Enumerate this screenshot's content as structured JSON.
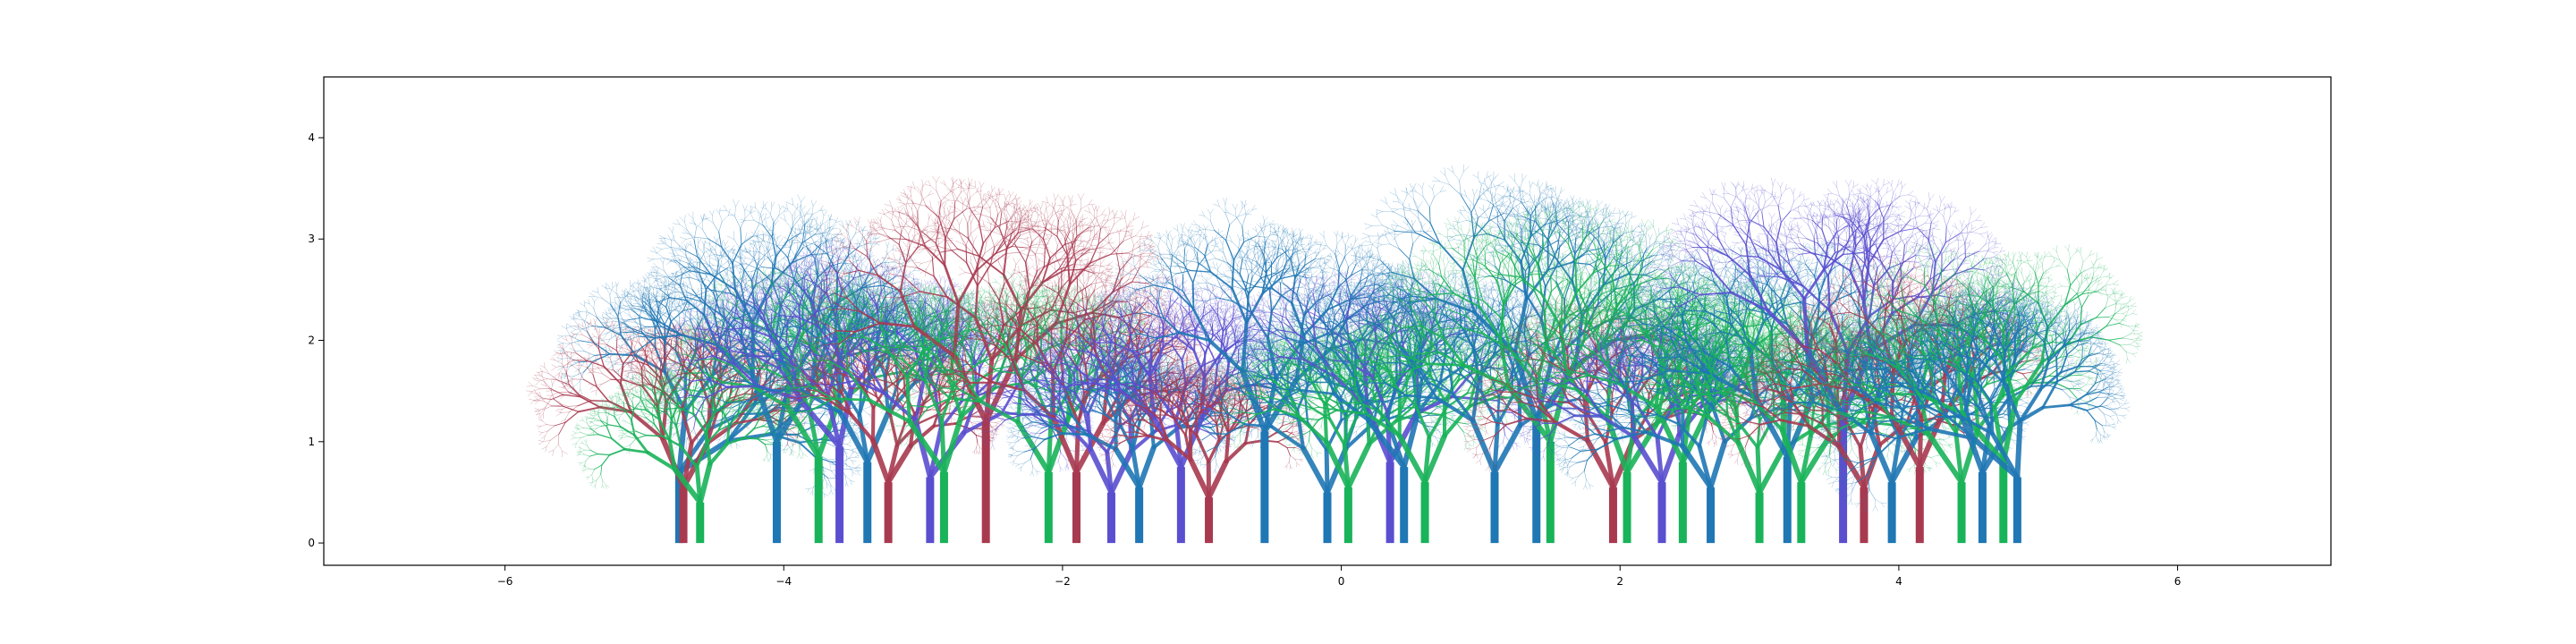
{
  "figure": {
    "plot_type": "fractal tree forest drawn on matplotlib axes",
    "background": "#ffffff",
    "x_axis": {
      "min": -7.3,
      "max": 7.1,
      "ticks": [
        -6,
        -4,
        -2,
        0,
        2,
        4,
        6
      ],
      "tick_labels": [
        "−6",
        "−4",
        "−2",
        "0",
        "2",
        "4",
        "6"
      ]
    },
    "y_axis": {
      "min": -0.22,
      "max": 4.6,
      "ticks": [
        0,
        1,
        2,
        3,
        4
      ],
      "tick_labels": [
        "0",
        "1",
        "2",
        "3",
        "4"
      ]
    },
    "palette": {
      "blue": "#1f77b4",
      "purple": "#5a4fcf",
      "green": "#19b35a",
      "red": "#a83a50"
    },
    "trees": [
      {
        "x": -4.75,
        "trunk": 0.7,
        "size": 1.1,
        "lean": -0.55,
        "color": "blue"
      },
      {
        "x": -4.72,
        "trunk": 0.55,
        "size": 0.95,
        "lean": -0.05,
        "color": "red"
      },
      {
        "x": -4.6,
        "trunk": 0.4,
        "size": 0.75,
        "lean": 0.2,
        "color": "green"
      },
      {
        "x": -4.05,
        "trunk": 1.0,
        "size": 1.25,
        "lean": -0.1,
        "color": "blue"
      },
      {
        "x": -3.75,
        "trunk": 0.85,
        "size": 1.05,
        "lean": 0.1,
        "color": "green"
      },
      {
        "x": -3.6,
        "trunk": 0.95,
        "size": 1.1,
        "lean": 0.25,
        "color": "purple"
      },
      {
        "x": -3.4,
        "trunk": 0.8,
        "size": 1.0,
        "lean": 0.05,
        "color": "blue"
      },
      {
        "x": -3.25,
        "trunk": 0.6,
        "size": 0.8,
        "lean": -0.1,
        "color": "red"
      },
      {
        "x": -2.95,
        "trunk": 0.65,
        "size": 1.05,
        "lean": -0.2,
        "color": "purple"
      },
      {
        "x": -2.85,
        "trunk": 0.7,
        "size": 1.1,
        "lean": 0.15,
        "color": "green"
      },
      {
        "x": -2.55,
        "trunk": 1.2,
        "size": 1.3,
        "lean": 0.0,
        "color": "red"
      },
      {
        "x": -2.1,
        "trunk": 0.7,
        "size": 1.05,
        "lean": 0.1,
        "color": "green"
      },
      {
        "x": -1.9,
        "trunk": 0.7,
        "size": 1.05,
        "lean": -0.05,
        "color": "red"
      },
      {
        "x": -1.65,
        "trunk": 0.5,
        "size": 0.85,
        "lean": 0.0,
        "color": "purple"
      },
      {
        "x": -1.45,
        "trunk": 0.55,
        "size": 0.8,
        "lean": 0.1,
        "color": "blue"
      },
      {
        "x": -1.15,
        "trunk": 0.75,
        "size": 1.0,
        "lean": 0.05,
        "color": "purple"
      },
      {
        "x": -0.95,
        "trunk": 0.45,
        "size": 0.75,
        "lean": 0.0,
        "color": "red"
      },
      {
        "x": -0.55,
        "trunk": 1.1,
        "size": 1.15,
        "lean": -0.1,
        "color": "blue"
      },
      {
        "x": -0.1,
        "trunk": 0.5,
        "size": 0.9,
        "lean": 0.05,
        "color": "blue"
      },
      {
        "x": 0.05,
        "trunk": 0.55,
        "size": 0.9,
        "lean": 0.0,
        "color": "green"
      },
      {
        "x": 0.35,
        "trunk": 0.8,
        "size": 1.05,
        "lean": -0.05,
        "color": "purple"
      },
      {
        "x": 0.45,
        "trunk": 0.75,
        "size": 1.05,
        "lean": 0.2,
        "color": "blue"
      },
      {
        "x": 0.6,
        "trunk": 0.6,
        "size": 0.95,
        "lean": 0.05,
        "color": "green"
      },
      {
        "x": 1.1,
        "trunk": 0.7,
        "size": 1.0,
        "lean": -0.05,
        "color": "blue"
      },
      {
        "x": 1.4,
        "trunk": 1.2,
        "size": 1.3,
        "lean": -0.15,
        "color": "blue"
      },
      {
        "x": 1.5,
        "trunk": 1.0,
        "size": 1.25,
        "lean": 0.2,
        "color": "green"
      },
      {
        "x": 1.95,
        "trunk": 0.55,
        "size": 0.95,
        "lean": 0.05,
        "color": "red"
      },
      {
        "x": 2.05,
        "trunk": 0.7,
        "size": 1.05,
        "lean": -0.1,
        "color": "green"
      },
      {
        "x": 2.3,
        "trunk": 0.6,
        "size": 0.95,
        "lean": 0.1,
        "color": "purple"
      },
      {
        "x": 2.45,
        "trunk": 0.8,
        "size": 1.1,
        "lean": 0.0,
        "color": "green"
      },
      {
        "x": 2.65,
        "trunk": 0.55,
        "size": 0.9,
        "lean": 0.15,
        "color": "blue"
      },
      {
        "x": 3.0,
        "trunk": 0.5,
        "size": 0.95,
        "lean": -0.05,
        "color": "green"
      },
      {
        "x": 3.2,
        "trunk": 0.85,
        "size": 1.2,
        "lean": 0.05,
        "color": "blue"
      },
      {
        "x": 3.3,
        "trunk": 0.6,
        "size": 1.0,
        "lean": -0.1,
        "color": "green"
      },
      {
        "x": 3.6,
        "trunk": 1.25,
        "size": 1.35,
        "lean": 0.05,
        "color": "purple"
      },
      {
        "x": 3.75,
        "trunk": 0.55,
        "size": 0.85,
        "lean": 0.1,
        "color": "red"
      },
      {
        "x": 3.95,
        "trunk": 0.6,
        "size": 0.95,
        "lean": -0.05,
        "color": "blue"
      },
      {
        "x": 4.15,
        "trunk": 0.75,
        "size": 1.05,
        "lean": 0.05,
        "color": "red"
      },
      {
        "x": 4.45,
        "trunk": 0.6,
        "size": 1.05,
        "lean": 0.15,
        "color": "green"
      },
      {
        "x": 4.6,
        "trunk": 0.7,
        "size": 1.0,
        "lean": -0.1,
        "color": "blue"
      },
      {
        "x": 4.75,
        "trunk": 0.8,
        "size": 1.15,
        "lean": 0.25,
        "color": "green"
      },
      {
        "x": 4.85,
        "trunk": 0.65,
        "size": 1.05,
        "lean": 0.4,
        "color": "blue"
      }
    ]
  }
}
